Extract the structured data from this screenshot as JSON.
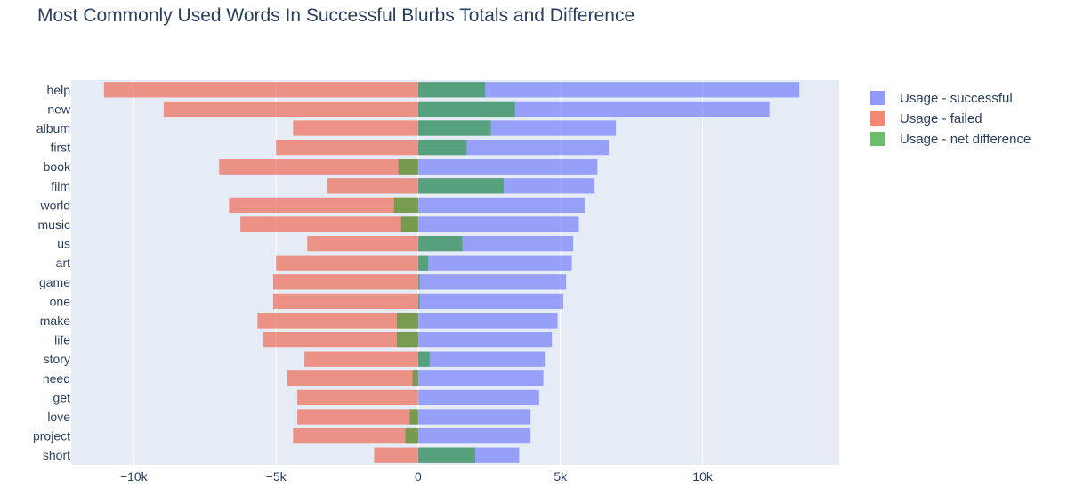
{
  "chart_data": {
    "type": "bar",
    "orientation": "horizontal",
    "barmode": "overlay",
    "title": "Most Commonly Used Words In Successful Blurbs Totals and Difference",
    "xlabel": "",
    "ylabel": "",
    "categories": [
      "help",
      "new",
      "album",
      "first",
      "book",
      "film",
      "world",
      "music",
      "us",
      "art",
      "game",
      "one",
      "make",
      "life",
      "story",
      "need",
      "get",
      "love",
      "project",
      "short"
    ],
    "series": [
      {
        "name": "Usage - successful",
        "color": "#636efa",
        "values": [
          13400,
          12350,
          6950,
          6700,
          6300,
          6200,
          5850,
          5650,
          5450,
          5400,
          5200,
          5100,
          4900,
          4700,
          4450,
          4400,
          4250,
          3950,
          3950,
          3550
        ]
      },
      {
        "name": "Usage - failed",
        "color": "#ef553b",
        "values": [
          -11050,
          -8950,
          -4400,
          -5000,
          -7000,
          -3200,
          -6650,
          -6250,
          -3900,
          -5000,
          -5100,
          -5100,
          -5650,
          -5450,
          -4000,
          -4600,
          -4250,
          -4250,
          -4400,
          -1550
        ]
      },
      {
        "name": "Usage - net difference",
        "color": "#2ca02c",
        "values": [
          2350,
          3400,
          2550,
          1700,
          -700,
          3000,
          -850,
          -600,
          1550,
          350,
          50,
          50,
          -750,
          -750,
          400,
          -200,
          0,
          -300,
          -450,
          2000
        ]
      }
    ],
    "xlim": [
      -12200,
      14800
    ],
    "xticks": [
      -10000,
      -5000,
      0,
      5000,
      10000
    ],
    "xtick_labels": [
      "−10k",
      "−5k",
      "0",
      "5k",
      "10k"
    ],
    "grid": true,
    "legend_position": "top-right",
    "background": "#e5ecf6"
  }
}
